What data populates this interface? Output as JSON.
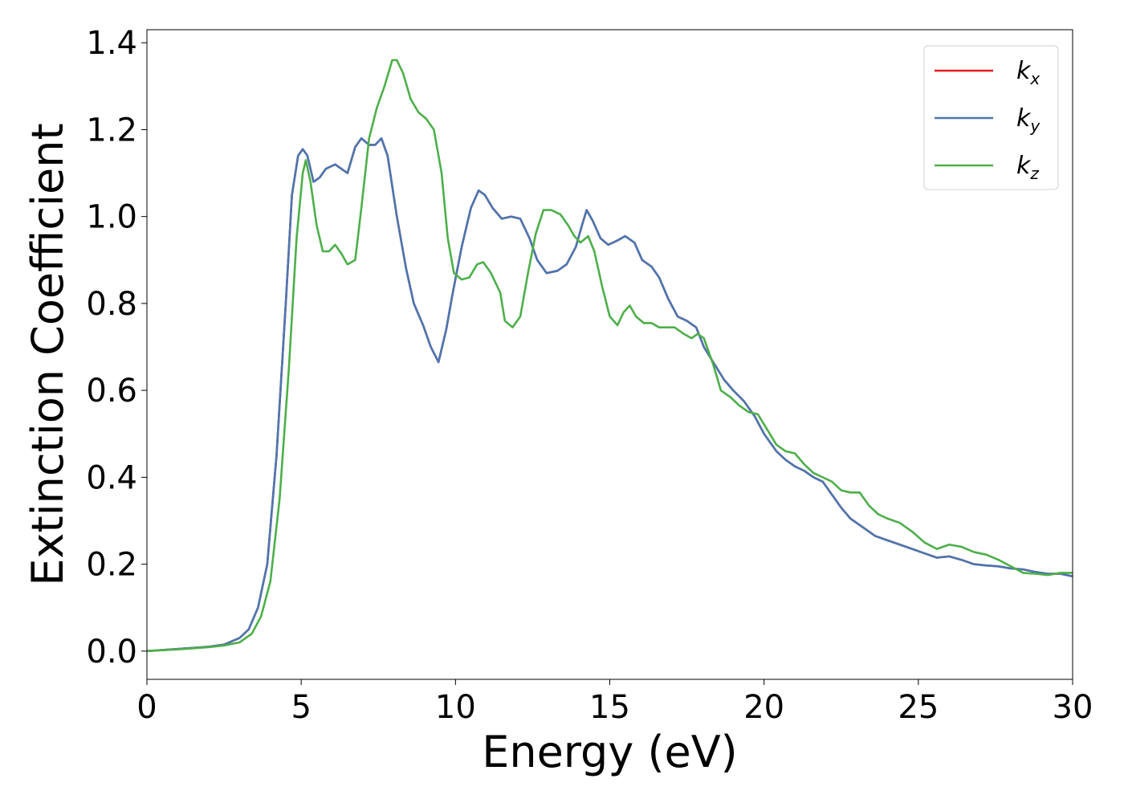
{
  "chart_data": {
    "type": "line",
    "xlabel": "Energy (eV)",
    "ylabel": "Extinction Coefficient",
    "xlim": [
      0,
      30
    ],
    "ylim": [
      -0.065,
      1.43
    ],
    "xticks": [
      0,
      5,
      10,
      15,
      20,
      25,
      30
    ],
    "xtick_labels": [
      "0",
      "5",
      "10",
      "15",
      "20",
      "25",
      "30"
    ],
    "yticks": [
      0.0,
      0.2,
      0.4,
      0.6,
      0.8,
      1.0,
      1.2,
      1.4
    ],
    "ytick_labels": [
      "0.0",
      "0.2",
      "0.4",
      "0.6",
      "0.8",
      "1.0",
      "1.2",
      "1.4"
    ],
    "grid": false,
    "legend_position": "top-right",
    "series": [
      {
        "name": "k_x",
        "legend_base": "k",
        "legend_sub": "x",
        "color": "#e41a1c",
        "points": [
          [
            0,
            0
          ],
          [
            1,
            0.005
          ],
          [
            2,
            0.01
          ],
          [
            2.5,
            0.015
          ],
          [
            3,
            0.03
          ],
          [
            3.3,
            0.05
          ],
          [
            3.6,
            0.1
          ],
          [
            3.9,
            0.2
          ],
          [
            4.2,
            0.45
          ],
          [
            4.5,
            0.8
          ],
          [
            4.7,
            1.05
          ],
          [
            4.9,
            1.14
          ],
          [
            5.05,
            1.155
          ],
          [
            5.2,
            1.14
          ],
          [
            5.4,
            1.08
          ],
          [
            5.6,
            1.09
          ],
          [
            5.8,
            1.11
          ],
          [
            6.1,
            1.12
          ],
          [
            6.3,
            1.11
          ],
          [
            6.5,
            1.1
          ],
          [
            6.75,
            1.16
          ],
          [
            6.95,
            1.18
          ],
          [
            7.2,
            1.165
          ],
          [
            7.4,
            1.165
          ],
          [
            7.6,
            1.18
          ],
          [
            7.8,
            1.14
          ],
          [
            8.1,
            1.0
          ],
          [
            8.4,
            0.88
          ],
          [
            8.65,
            0.8
          ],
          [
            8.95,
            0.75
          ],
          [
            9.2,
            0.7
          ],
          [
            9.45,
            0.665
          ],
          [
            9.7,
            0.74
          ],
          [
            9.9,
            0.82
          ],
          [
            10.2,
            0.93
          ],
          [
            10.5,
            1.02
          ],
          [
            10.75,
            1.06
          ],
          [
            10.95,
            1.05
          ],
          [
            11.2,
            1.02
          ],
          [
            11.5,
            0.995
          ],
          [
            11.8,
            1.0
          ],
          [
            12.1,
            0.995
          ],
          [
            12.4,
            0.95
          ],
          [
            12.65,
            0.9
          ],
          [
            12.95,
            0.87
          ],
          [
            13.3,
            0.875
          ],
          [
            13.6,
            0.89
          ],
          [
            13.9,
            0.93
          ],
          [
            14.1,
            0.98
          ],
          [
            14.25,
            1.015
          ],
          [
            14.45,
            0.99
          ],
          [
            14.7,
            0.95
          ],
          [
            14.95,
            0.935
          ],
          [
            15.25,
            0.945
          ],
          [
            15.5,
            0.955
          ],
          [
            15.8,
            0.94
          ],
          [
            16.05,
            0.9
          ],
          [
            16.35,
            0.885
          ],
          [
            16.6,
            0.86
          ],
          [
            16.9,
            0.81
          ],
          [
            17.2,
            0.77
          ],
          [
            17.5,
            0.76
          ],
          [
            17.8,
            0.745
          ],
          [
            18.05,
            0.7
          ],
          [
            18.35,
            0.665
          ],
          [
            18.7,
            0.625
          ],
          [
            19.0,
            0.6
          ],
          [
            19.35,
            0.575
          ],
          [
            19.7,
            0.54
          ],
          [
            20.0,
            0.5
          ],
          [
            20.4,
            0.46
          ],
          [
            20.7,
            0.44
          ],
          [
            21.0,
            0.425
          ],
          [
            21.3,
            0.415
          ],
          [
            21.6,
            0.4
          ],
          [
            21.9,
            0.39
          ],
          [
            22.2,
            0.36
          ],
          [
            22.5,
            0.33
          ],
          [
            22.8,
            0.305
          ],
          [
            23.2,
            0.285
          ],
          [
            23.6,
            0.265
          ],
          [
            24.0,
            0.255
          ],
          [
            24.4,
            0.245
          ],
          [
            24.8,
            0.235
          ],
          [
            25.2,
            0.225
          ],
          [
            25.6,
            0.215
          ],
          [
            26.0,
            0.218
          ],
          [
            26.4,
            0.21
          ],
          [
            26.8,
            0.2
          ],
          [
            27.2,
            0.197
          ],
          [
            27.6,
            0.195
          ],
          [
            28.0,
            0.19
          ],
          [
            28.4,
            0.188
          ],
          [
            28.8,
            0.182
          ],
          [
            29.2,
            0.178
          ],
          [
            29.6,
            0.178
          ],
          [
            30.0,
            0.172
          ]
        ]
      },
      {
        "name": "k_y",
        "legend_base": "k",
        "legend_sub": "y",
        "color": "#4a77b0",
        "points": [
          [
            0,
            0
          ],
          [
            1,
            0.005
          ],
          [
            2,
            0.01
          ],
          [
            2.5,
            0.015
          ],
          [
            3,
            0.03
          ],
          [
            3.3,
            0.05
          ],
          [
            3.6,
            0.1
          ],
          [
            3.9,
            0.2
          ],
          [
            4.2,
            0.45
          ],
          [
            4.5,
            0.8
          ],
          [
            4.7,
            1.05
          ],
          [
            4.9,
            1.14
          ],
          [
            5.05,
            1.155
          ],
          [
            5.2,
            1.14
          ],
          [
            5.4,
            1.08
          ],
          [
            5.6,
            1.09
          ],
          [
            5.8,
            1.11
          ],
          [
            6.1,
            1.12
          ],
          [
            6.3,
            1.11
          ],
          [
            6.5,
            1.1
          ],
          [
            6.75,
            1.16
          ],
          [
            6.95,
            1.18
          ],
          [
            7.2,
            1.165
          ],
          [
            7.4,
            1.165
          ],
          [
            7.6,
            1.18
          ],
          [
            7.8,
            1.14
          ],
          [
            8.1,
            1.0
          ],
          [
            8.4,
            0.88
          ],
          [
            8.65,
            0.8
          ],
          [
            8.95,
            0.75
          ],
          [
            9.2,
            0.7
          ],
          [
            9.45,
            0.665
          ],
          [
            9.7,
            0.74
          ],
          [
            9.9,
            0.82
          ],
          [
            10.2,
            0.93
          ],
          [
            10.5,
            1.02
          ],
          [
            10.75,
            1.06
          ],
          [
            10.95,
            1.05
          ],
          [
            11.2,
            1.02
          ],
          [
            11.5,
            0.995
          ],
          [
            11.8,
            1.0
          ],
          [
            12.1,
            0.995
          ],
          [
            12.4,
            0.95
          ],
          [
            12.65,
            0.9
          ],
          [
            12.95,
            0.87
          ],
          [
            13.3,
            0.875
          ],
          [
            13.6,
            0.89
          ],
          [
            13.9,
            0.93
          ],
          [
            14.1,
            0.98
          ],
          [
            14.25,
            1.015
          ],
          [
            14.45,
            0.99
          ],
          [
            14.7,
            0.95
          ],
          [
            14.95,
            0.935
          ],
          [
            15.25,
            0.945
          ],
          [
            15.5,
            0.955
          ],
          [
            15.8,
            0.94
          ],
          [
            16.05,
            0.9
          ],
          [
            16.35,
            0.885
          ],
          [
            16.6,
            0.86
          ],
          [
            16.9,
            0.81
          ],
          [
            17.2,
            0.77
          ],
          [
            17.5,
            0.76
          ],
          [
            17.8,
            0.745
          ],
          [
            18.05,
            0.7
          ],
          [
            18.35,
            0.665
          ],
          [
            18.7,
            0.625
          ],
          [
            19.0,
            0.6
          ],
          [
            19.35,
            0.575
          ],
          [
            19.7,
            0.54
          ],
          [
            20.0,
            0.5
          ],
          [
            20.4,
            0.46
          ],
          [
            20.7,
            0.44
          ],
          [
            21.0,
            0.425
          ],
          [
            21.3,
            0.415
          ],
          [
            21.6,
            0.4
          ],
          [
            21.9,
            0.39
          ],
          [
            22.2,
            0.36
          ],
          [
            22.5,
            0.33
          ],
          [
            22.8,
            0.305
          ],
          [
            23.2,
            0.285
          ],
          [
            23.6,
            0.265
          ],
          [
            24.0,
            0.255
          ],
          [
            24.4,
            0.245
          ],
          [
            24.8,
            0.235
          ],
          [
            25.2,
            0.225
          ],
          [
            25.6,
            0.215
          ],
          [
            26.0,
            0.218
          ],
          [
            26.4,
            0.21
          ],
          [
            26.8,
            0.2
          ],
          [
            27.2,
            0.197
          ],
          [
            27.6,
            0.195
          ],
          [
            28.0,
            0.19
          ],
          [
            28.4,
            0.188
          ],
          [
            28.8,
            0.182
          ],
          [
            29.2,
            0.178
          ],
          [
            29.6,
            0.178
          ],
          [
            30.0,
            0.172
          ]
        ]
      },
      {
        "name": "k_z",
        "legend_base": "k",
        "legend_sub": "z",
        "color": "#4daf4a",
        "points": [
          [
            0,
            0
          ],
          [
            1,
            0.004
          ],
          [
            2,
            0.009
          ],
          [
            2.5,
            0.013
          ],
          [
            3,
            0.02
          ],
          [
            3.4,
            0.04
          ],
          [
            3.7,
            0.08
          ],
          [
            4.0,
            0.16
          ],
          [
            4.3,
            0.35
          ],
          [
            4.6,
            0.65
          ],
          [
            4.85,
            0.95
          ],
          [
            5.05,
            1.1
          ],
          [
            5.15,
            1.13
          ],
          [
            5.3,
            1.08
          ],
          [
            5.5,
            0.98
          ],
          [
            5.7,
            0.92
          ],
          [
            5.9,
            0.92
          ],
          [
            6.1,
            0.935
          ],
          [
            6.3,
            0.915
          ],
          [
            6.5,
            0.89
          ],
          [
            6.75,
            0.9
          ],
          [
            6.95,
            1.02
          ],
          [
            7.2,
            1.18
          ],
          [
            7.45,
            1.25
          ],
          [
            7.7,
            1.3
          ],
          [
            7.95,
            1.36
          ],
          [
            8.1,
            1.36
          ],
          [
            8.3,
            1.33
          ],
          [
            8.55,
            1.27
          ],
          [
            8.8,
            1.24
          ],
          [
            9.05,
            1.225
          ],
          [
            9.3,
            1.2
          ],
          [
            9.55,
            1.1
          ],
          [
            9.75,
            0.95
          ],
          [
            9.95,
            0.87
          ],
          [
            10.2,
            0.855
          ],
          [
            10.45,
            0.86
          ],
          [
            10.7,
            0.89
          ],
          [
            10.9,
            0.895
          ],
          [
            11.15,
            0.87
          ],
          [
            11.45,
            0.825
          ],
          [
            11.6,
            0.76
          ],
          [
            11.85,
            0.745
          ],
          [
            12.1,
            0.77
          ],
          [
            12.35,
            0.87
          ],
          [
            12.6,
            0.96
          ],
          [
            12.85,
            1.015
          ],
          [
            13.1,
            1.015
          ],
          [
            13.4,
            1.005
          ],
          [
            13.65,
            0.98
          ],
          [
            13.85,
            0.955
          ],
          [
            14.05,
            0.94
          ],
          [
            14.3,
            0.955
          ],
          [
            14.5,
            0.92
          ],
          [
            14.75,
            0.84
          ],
          [
            15.0,
            0.77
          ],
          [
            15.25,
            0.75
          ],
          [
            15.45,
            0.78
          ],
          [
            15.65,
            0.795
          ],
          [
            15.85,
            0.77
          ],
          [
            16.1,
            0.755
          ],
          [
            16.35,
            0.755
          ],
          [
            16.6,
            0.745
          ],
          [
            16.85,
            0.745
          ],
          [
            17.1,
            0.745
          ],
          [
            17.4,
            0.73
          ],
          [
            17.65,
            0.72
          ],
          [
            17.85,
            0.73
          ],
          [
            18.05,
            0.72
          ],
          [
            18.35,
            0.66
          ],
          [
            18.6,
            0.6
          ],
          [
            18.9,
            0.585
          ],
          [
            19.2,
            0.565
          ],
          [
            19.5,
            0.55
          ],
          [
            19.8,
            0.545
          ],
          [
            20.1,
            0.51
          ],
          [
            20.4,
            0.475
          ],
          [
            20.7,
            0.46
          ],
          [
            21.0,
            0.455
          ],
          [
            21.3,
            0.43
          ],
          [
            21.6,
            0.41
          ],
          [
            21.9,
            0.4
          ],
          [
            22.2,
            0.39
          ],
          [
            22.5,
            0.37
          ],
          [
            22.8,
            0.365
          ],
          [
            23.1,
            0.365
          ],
          [
            23.4,
            0.335
          ],
          [
            23.7,
            0.315
          ],
          [
            24.0,
            0.305
          ],
          [
            24.4,
            0.295
          ],
          [
            24.8,
            0.275
          ],
          [
            25.2,
            0.25
          ],
          [
            25.6,
            0.235
          ],
          [
            26.0,
            0.245
          ],
          [
            26.4,
            0.24
          ],
          [
            26.8,
            0.228
          ],
          [
            27.2,
            0.222
          ],
          [
            27.6,
            0.21
          ],
          [
            28.0,
            0.195
          ],
          [
            28.4,
            0.18
          ],
          [
            28.8,
            0.178
          ],
          [
            29.2,
            0.175
          ],
          [
            29.6,
            0.18
          ],
          [
            30.0,
            0.18
          ]
        ]
      }
    ]
  }
}
